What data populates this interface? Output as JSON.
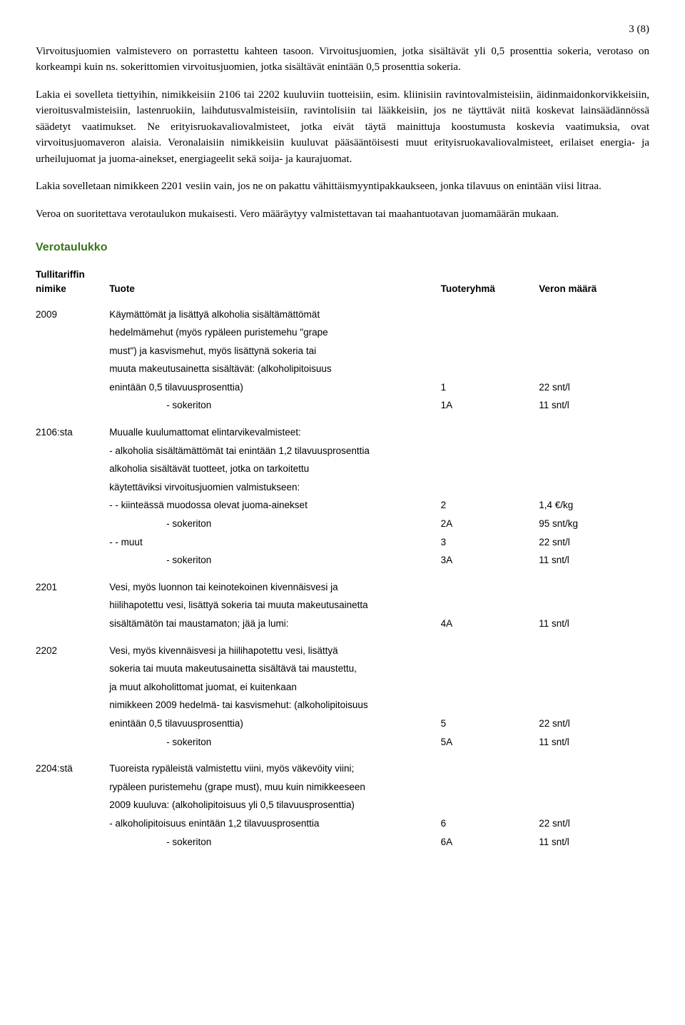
{
  "page_number": "3 (8)",
  "paragraphs": {
    "p1": "Virvoitusjuomien valmistevero on porrastettu kahteen tasoon. Virvoitusjuomien, jotka sisältävät yli 0,5 prosenttia sokeria, verotaso on korkeampi kuin ns. sokerittomien virvoitusjuomien, jotka sisältävät enintään 0,5 prosenttia sokeria.",
    "p2": "Lakia ei sovelleta tiettyihin, nimikkeisiin 2106 tai 2202 kuuluviin tuotteisiin, esim. kliinisiin ravintovalmisteisiin, äidinmaidonkorvikkeisiin, vieroitusvalmisteisiin, lastenruokiin, laihdutusvalmisteisiin, ravintolisiin tai lääkkeisiin, jos ne täyttävät niitä koskevat lainsäädännössä säädetyt vaatimukset. Ne erityisruokavaliovalmisteet, jotka eivät täytä mainittuja koostumusta koskevia vaatimuksia, ovat virvoitusjuomaveron alaisia. Veronalaisiin nimikkeisiin kuuluvat pääsääntöisesti muut erityisruokavaliovalmisteet, erilaiset energia- ja urheilujuomat ja juoma-ainekset, energiageelit sekä soija- ja kaurajuomat.",
    "p3": "Lakia sovelletaan nimikkeen 2201 vesiin vain, jos ne on pakattu vähittäismyyntipakkaukseen, jonka tilavuus on enintään viisi litraa.",
    "p4": "Veroa on suoritettava verotaulukon mukaisesti. Vero määräytyy valmistettavan tai maahantuotavan juomamäärän mukaan."
  },
  "section_heading": "Verotaulukko",
  "table": {
    "headers": {
      "col1a": "Tullitariffin",
      "col1b": "nimike",
      "col2": "Tuote",
      "col3": "Tuoteryhmä",
      "col4": "Veron määrä"
    },
    "rows": [
      {
        "code": "2009",
        "lines": [
          {
            "desc": "Käymättömät ja lisättyä alkoholia sisältämättömät",
            "group": "",
            "rate": ""
          },
          {
            "desc": "hedelmämehut (myös rypäleen puristemehu \"grape",
            "group": "",
            "rate": ""
          },
          {
            "desc": "must\") ja kasvismehut, myös lisättynä sokeria tai",
            "group": "",
            "rate": ""
          },
          {
            "desc": "muuta makeutusainetta sisältävät: (alkoholipitoisuus",
            "group": "",
            "rate": ""
          },
          {
            "desc": "enintään 0,5 tilavuusprosenttia)",
            "group": "1",
            "rate": "22 snt/l"
          },
          {
            "desc": "- sokeriton",
            "indent": 2,
            "group": "1A",
            "rate": "11 snt/l"
          }
        ]
      },
      {
        "code": "2106:sta",
        "lines": [
          {
            "desc": "Muualle kuulumattomat elintarvikevalmisteet:",
            "group": "",
            "rate": ""
          },
          {
            "desc": "- alkoholia sisältämättömät tai enintään 1,2 tilavuusprosenttia",
            "group": "",
            "rate": ""
          },
          {
            "desc": "alkoholia sisältävät tuotteet, jotka on tarkoitettu",
            "group": "",
            "rate": ""
          },
          {
            "desc": "käytettäviksi virvoitusjuomien valmistukseen:",
            "group": "",
            "rate": ""
          },
          {
            "desc": "- - kiinteässä muodossa olevat juoma-ainekset",
            "group": "2",
            "rate": "1,4 €/kg"
          },
          {
            "desc": "- sokeriton",
            "indent": 2,
            "group": "2A",
            "rate": "95 snt/kg"
          },
          {
            "desc": "- - muut",
            "group": "3",
            "rate": "22 snt/l"
          },
          {
            "desc": "- sokeriton",
            "indent": 2,
            "group": "3A",
            "rate": "11 snt/l"
          }
        ]
      },
      {
        "code": "2201",
        "lines": [
          {
            "desc": "Vesi, myös luonnon tai keinotekoinen kivennäisvesi ja",
            "group": "",
            "rate": ""
          },
          {
            "desc": "hiilihapotettu vesi, lisättyä sokeria tai muuta makeutusainetta",
            "group": "",
            "rate": ""
          },
          {
            "desc": "sisältämätön tai maustamaton; jää ja lumi:",
            "group": "4A",
            "rate": "11 snt/l"
          }
        ]
      },
      {
        "code": "2202",
        "lines": [
          {
            "desc": "Vesi, myös kivennäisvesi ja hiilihapotettu vesi, lisättyä",
            "group": "",
            "rate": ""
          },
          {
            "desc": "sokeria tai muuta makeutusainetta sisältävä tai maustettu,",
            "group": "",
            "rate": ""
          },
          {
            "desc": "ja muut alkoholittomat juomat, ei kuitenkaan",
            "group": "",
            "rate": ""
          },
          {
            "desc": "nimikkeen 2009 hedelmä- tai kasvismehut: (alkoholipitoisuus",
            "group": "",
            "rate": ""
          },
          {
            "desc": "enintään 0,5 tilavuusprosenttia)",
            "group": "5",
            "rate": "22 snt/l"
          },
          {
            "desc": "- sokeriton",
            "indent": 2,
            "group": "5A",
            "rate": "11 snt/l"
          }
        ]
      },
      {
        "code": "2204:stä",
        "lines": [
          {
            "desc": "Tuoreista rypäleistä valmistettu viini, myös väkevöity viini;",
            "group": "",
            "rate": ""
          },
          {
            "desc": "rypäleen puristemehu (grape must), muu kuin nimikkeeseen",
            "group": "",
            "rate": ""
          },
          {
            "desc": "2009 kuuluva: (alkoholipitoisuus yli 0,5 tilavuusprosenttia)",
            "group": "",
            "rate": ""
          },
          {
            "desc": "- alkoholipitoisuus enintään 1,2 tilavuusprosenttia",
            "group": "6",
            "rate": "22 snt/l"
          },
          {
            "desc": "- sokeriton",
            "indent": 2,
            "group": "6A",
            "rate": "11 snt/l"
          }
        ]
      }
    ]
  }
}
